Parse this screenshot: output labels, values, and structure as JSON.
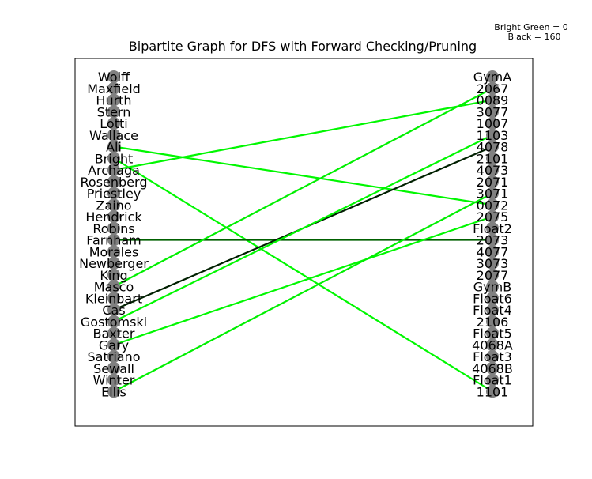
{
  "chart_data": {
    "type": "bipartite-graph",
    "title": "Bipartite Graph for DFS with Forward Checking/Pruning",
    "legend": {
      "lines": [
        "Bright Green = 0",
        "Black = 160"
      ],
      "placement": "top-right",
      "scale_start_color": "#00ff00",
      "scale_end_color": "#000000",
      "scale_min": 0,
      "scale_max": 160
    },
    "node_color": "#808080",
    "left_nodes": [
      "Wolff",
      "Maxfield",
      "Hurth",
      "Stern",
      "Lotti",
      "Wallace",
      "Ali",
      "Bright",
      "Archaga",
      "Rosenberg",
      "Priestley",
      "Zaino",
      "Hendrick",
      "Robins",
      "Farnham",
      "Morales",
      "Newberger",
      "King",
      "Masco",
      "Kleinbart",
      "Cas",
      "Gostomski",
      "Baxter",
      "Gary",
      "Satriano",
      "Sewall",
      "Winter",
      "Ellis"
    ],
    "right_nodes": [
      "GymA",
      "2067",
      "0089",
      "3077",
      "1007",
      "1103",
      "4078",
      "2101",
      "4073",
      "2071",
      "3071",
      "0072",
      "2075",
      "Float2",
      "2073",
      "4077",
      "3073",
      "2077",
      "GymB",
      "Float6",
      "Float4",
      "2106",
      "Float5",
      "4068A",
      "Float3",
      "4068B",
      "Float1",
      "1101"
    ],
    "edges": [
      {
        "from": "Ali",
        "to": "0072",
        "value": 5
      },
      {
        "from": "Bright",
        "to": "1101",
        "value": 5
      },
      {
        "from": "Archaga",
        "to": "0089",
        "value": 5
      },
      {
        "from": "Farnham",
        "to": "2073",
        "value": 100
      },
      {
        "from": "Masco",
        "to": "2067",
        "value": 10
      },
      {
        "from": "Cas",
        "to": "4078",
        "value": 140
      },
      {
        "from": "Gostomski",
        "to": "1103",
        "value": 5
      },
      {
        "from": "Gary",
        "to": "2075",
        "value": 5
      },
      {
        "from": "Ellis",
        "to": "3071",
        "value": 10
      }
    ]
  }
}
